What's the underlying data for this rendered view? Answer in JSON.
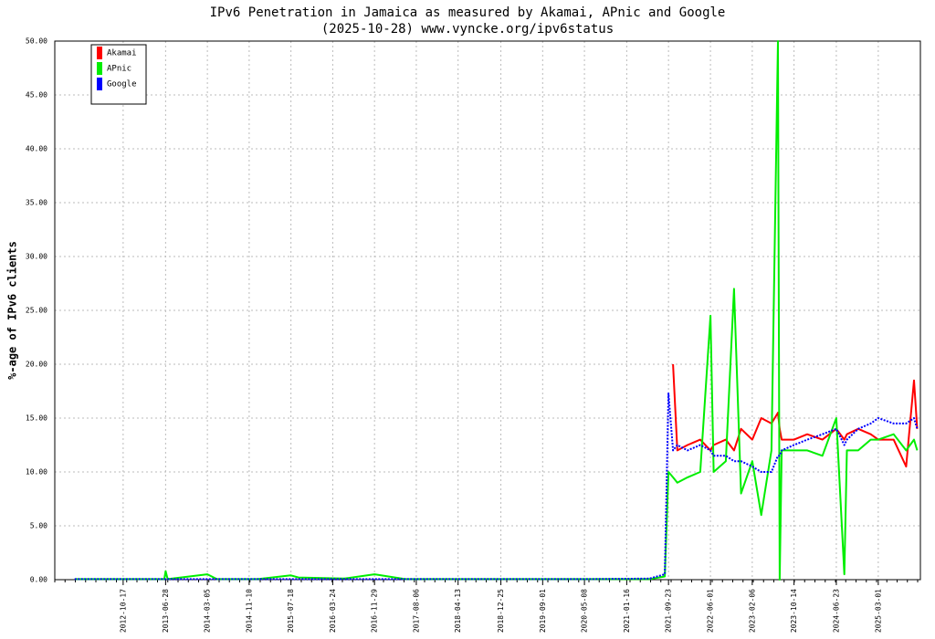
{
  "chart_data": {
    "type": "line",
    "title": "IPv6 Penetration in Jamaica as measured by Akamai, APnic and Google",
    "subtitle": "(2025-10-28) www.vyncke.org/ipv6status",
    "y_label": "%-age of IPv6 clients",
    "x": [
      "2012-01-01",
      "2012-10-17",
      "2013-06-20",
      "2013-06-28",
      "2013-07-10",
      "2014-03-05",
      "2014-05-01",
      "2015-01-01",
      "2015-07-18",
      "2015-09-01",
      "2016-06-01",
      "2016-11-29",
      "2017-06-01",
      "2018-06-01",
      "2019-06-01",
      "2020-06-01",
      "2021-06-01",
      "2021-09-01",
      "2021-09-23",
      "2021-10-20",
      "2021-11-15",
      "2022-01-15",
      "2022-04-01",
      "2022-06-01",
      "2022-06-20",
      "2022-09-01",
      "2022-10-20",
      "2022-12-01",
      "2023-02-06",
      "2023-04-01",
      "2023-06-01",
      "2023-07-10",
      "2023-07-20",
      "2023-08-01",
      "2023-10-14",
      "2024-01-01",
      "2024-04-01",
      "2024-06-23",
      "2024-08-10",
      "2024-08-25",
      "2024-11-01",
      "2025-01-15",
      "2025-03-01",
      "2025-06-01",
      "2025-08-15",
      "2025-10-01",
      "2025-10-20"
    ],
    "series": [
      {
        "name": "Akamai",
        "color": "#ff0000",
        "values": [
          null,
          null,
          null,
          null,
          null,
          null,
          null,
          null,
          null,
          null,
          null,
          null,
          null,
          null,
          null,
          null,
          null,
          null,
          null,
          20,
          12,
          12.5,
          13,
          12,
          12.5,
          13,
          12,
          14,
          13,
          15,
          14.5,
          15.5,
          14,
          13,
          13,
          13.5,
          13,
          14,
          13,
          13.5,
          14,
          13.5,
          13,
          13,
          10.5,
          18.5,
          14
        ]
      },
      {
        "name": "APnic",
        "color": "#00ee00",
        "values": [
          0.05,
          0.05,
          0.05,
          0.8,
          0.05,
          0.5,
          0.05,
          0.05,
          0.4,
          0.2,
          0.1,
          0.5,
          0.05,
          0.05,
          0.05,
          0.05,
          0.05,
          0.3,
          10,
          9.5,
          9,
          9.5,
          10,
          24.5,
          10,
          11,
          27,
          8,
          11,
          6,
          12,
          50,
          0,
          12,
          12,
          12,
          11.5,
          15,
          0.5,
          12,
          12,
          13,
          13,
          13.5,
          12,
          13,
          12
        ]
      },
      {
        "name": "Google",
        "color": "#0000ff",
        "values": [
          0.05,
          0.05,
          0.05,
          0.05,
          0.05,
          0.05,
          0.05,
          0.05,
          0.05,
          0.05,
          0.05,
          0.05,
          0.05,
          0.05,
          0.05,
          0.05,
          0.1,
          0.5,
          17.3,
          12,
          12.5,
          12,
          12.5,
          12,
          11.5,
          11.5,
          11,
          11,
          10.5,
          10,
          10,
          11.5,
          11.5,
          12,
          12.5,
          13,
          13.5,
          14,
          12.5,
          13,
          14,
          14.5,
          15,
          14.5,
          14.5,
          15,
          14
        ]
      }
    ],
    "xlim": [
      "2011-09-04",
      "2025-11-08"
    ],
    "xticks": [
      "2012-10-17",
      "2013-06-28",
      "2014-03-05",
      "2014-11-10",
      "2015-07-18",
      "2016-03-24",
      "2016-11-29",
      "2017-08-06",
      "2018-04-13",
      "2018-12-25",
      "2019-09-01",
      "2020-05-08",
      "2021-01-16",
      "2021-09-23",
      "2022-06-01",
      "2023-02-06",
      "2023-10-14",
      "2024-06-23",
      "2025-03-01"
    ],
    "ylim": [
      0,
      50
    ],
    "yticks": [
      {
        "value": 0,
        "label": "0.00"
      },
      {
        "value": 5,
        "label": "5.00"
      },
      {
        "value": 10,
        "label": "10.00"
      },
      {
        "value": 15,
        "label": "15.00"
      },
      {
        "value": 20,
        "label": "20.00"
      },
      {
        "value": 25,
        "label": "25.00"
      },
      {
        "value": 30,
        "label": "30.00"
      },
      {
        "value": 35,
        "label": "35.00"
      },
      {
        "value": 40,
        "label": "40.00"
      },
      {
        "value": 45,
        "label": "45.00"
      },
      {
        "value": 50,
        "label": "50.00"
      }
    ],
    "grid": true,
    "legend": "upper left"
  }
}
